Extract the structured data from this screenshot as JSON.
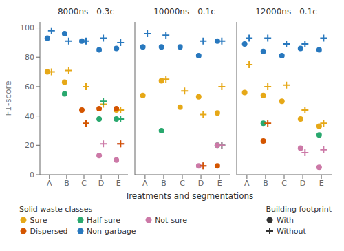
{
  "chart_data": [
    {
      "type": "scatter",
      "title": "8000ns - 0.3c",
      "ylabel": "F1-score",
      "legend_titles": [
        "Solid waste classes",
        "Building footprint"
      ],
      "categories": [
        "A",
        "B",
        "C",
        "D",
        "E"
      ],
      "ylim": [
        0,
        104
      ],
      "yticks": [
        0,
        20,
        40,
        60,
        80,
        100
      ],
      "grid": false,
      "series": [
        {
          "name": "Sure",
          "group": "With",
          "marker": "circle",
          "color": "#E6A817",
          "values": [
            70,
            63,
            null,
            null,
            44
          ]
        },
        {
          "name": "Sure",
          "group": "Without",
          "marker": "plus",
          "color": "#E6A817",
          "values": [
            70,
            71,
            60,
            48,
            44
          ]
        },
        {
          "name": "Half-sure",
          "group": "With",
          "marker": "circle",
          "color": "#29A86E",
          "values": [
            null,
            55,
            null,
            38,
            38
          ]
        },
        {
          "name": "Half-sure",
          "group": "Without",
          "marker": "plus",
          "color": "#29A86E",
          "values": [
            null,
            null,
            null,
            50,
            38
          ]
        },
        {
          "name": "Not-sure",
          "group": "With",
          "marker": "circle",
          "color": "#CC79A7",
          "values": [
            null,
            null,
            null,
            13,
            10
          ]
        },
        {
          "name": "Not-sure",
          "group": "Without",
          "marker": "plus",
          "color": "#CC79A7",
          "values": [
            null,
            null,
            null,
            21,
            21
          ]
        },
        {
          "name": "Dispersed",
          "group": "With",
          "marker": "circle",
          "color": "#D45500",
          "values": [
            null,
            null,
            44,
            45,
            45
          ]
        },
        {
          "name": "Dispersed",
          "group": "Without",
          "marker": "plus",
          "color": "#D45500",
          "values": [
            null,
            null,
            35,
            null,
            21
          ]
        },
        {
          "name": "Non-garbage",
          "group": "With",
          "marker": "circle",
          "color": "#2878BE",
          "values": [
            93,
            96,
            91,
            85,
            86
          ]
        },
        {
          "name": "Non-garbage",
          "group": "Without",
          "marker": "plus",
          "color": "#2878BE",
          "values": [
            98,
            91,
            91,
            93,
            90
          ]
        }
      ]
    },
    {
      "type": "scatter",
      "title": "10000ns - 0.1c",
      "xlabel": "Treatments and segmentations",
      "tick_labels": "x",
      "categories": [
        "A",
        "B",
        "C",
        "D",
        "E"
      ],
      "ylim": [
        0,
        104
      ],
      "yticks": [
        0,
        20,
        40,
        60,
        80,
        100
      ],
      "grid": false,
      "series": [
        {
          "name": "Sure",
          "group": "With",
          "marker": "circle",
          "color": "#E6A817",
          "values": [
            54,
            64,
            46,
            53,
            42
          ]
        },
        {
          "name": "Sure",
          "group": "Without",
          "marker": "plus",
          "color": "#E6A817",
          "values": [
            null,
            65,
            57,
            41,
            60
          ]
        },
        {
          "name": "Half-sure",
          "group": "With",
          "marker": "circle",
          "color": "#29A86E",
          "values": [
            null,
            30,
            null,
            null,
            20
          ]
        },
        {
          "name": "Half-sure",
          "group": "Without",
          "marker": "plus",
          "color": "#29A86E",
          "values": [
            null,
            null,
            null,
            null,
            20
          ]
        },
        {
          "name": "Not-sure",
          "group": "With",
          "marker": "circle",
          "color": "#CC79A7",
          "values": [
            null,
            null,
            null,
            6,
            20
          ]
        },
        {
          "name": "Not-sure",
          "group": "Without",
          "marker": "plus",
          "color": "#CC79A7",
          "values": [
            null,
            null,
            null,
            6,
            20
          ]
        },
        {
          "name": "Dispersed",
          "group": "With",
          "marker": "circle",
          "color": "#D45500",
          "values": [
            null,
            null,
            null,
            null,
            6
          ]
        },
        {
          "name": "Dispersed",
          "group": "Without",
          "marker": "plus",
          "color": "#D45500",
          "values": [
            null,
            null,
            null,
            6,
            null
          ]
        },
        {
          "name": "Non-garbage",
          "group": "With",
          "marker": "circle",
          "color": "#2878BE",
          "values": [
            87,
            87,
            87,
            81,
            91
          ]
        },
        {
          "name": "Non-garbage",
          "group": "Without",
          "marker": "plus",
          "color": "#2878BE",
          "values": [
            96,
            95,
            null,
            91,
            91
          ]
        }
      ]
    },
    {
      "type": "scatter",
      "title": "12000ns - 0.1c",
      "tick_labels": "x",
      "categories": [
        "A",
        "B",
        "C",
        "D",
        "E"
      ],
      "ylim": [
        0,
        104
      ],
      "yticks": [
        0,
        20,
        40,
        60,
        80,
        100
      ],
      "grid": false,
      "series": [
        {
          "name": "Sure",
          "group": "With",
          "marker": "circle",
          "color": "#E6A817",
          "values": [
            56,
            54,
            50,
            38,
            33
          ]
        },
        {
          "name": "Sure",
          "group": "Without",
          "marker": "plus",
          "color": "#E6A817",
          "values": [
            75,
            60,
            61,
            44,
            35
          ]
        },
        {
          "name": "Half-sure",
          "group": "With",
          "marker": "circle",
          "color": "#29A86E",
          "values": [
            null,
            35,
            null,
            null,
            27
          ]
        },
        {
          "name": "Half-sure",
          "group": "Without",
          "marker": "plus",
          "color": "#29A86E",
          "values": [
            null,
            null,
            null,
            null,
            null
          ]
        },
        {
          "name": "Not-sure",
          "group": "With",
          "marker": "circle",
          "color": "#CC79A7",
          "values": [
            null,
            null,
            null,
            18,
            5
          ]
        },
        {
          "name": "Not-sure",
          "group": "Without",
          "marker": "plus",
          "color": "#CC79A7",
          "values": [
            null,
            null,
            null,
            15,
            17
          ]
        },
        {
          "name": "Dispersed",
          "group": "With",
          "marker": "circle",
          "color": "#D45500",
          "values": [
            null,
            23,
            null,
            null,
            null
          ]
        },
        {
          "name": "Dispersed",
          "group": "Without",
          "marker": "plus",
          "color": "#D45500",
          "values": [
            null,
            35,
            null,
            null,
            null
          ]
        },
        {
          "name": "Non-garbage",
          "group": "With",
          "marker": "circle",
          "color": "#2878BE",
          "values": [
            89,
            84,
            81,
            86,
            85
          ]
        },
        {
          "name": "Non-garbage",
          "group": "Without",
          "marker": "plus",
          "color": "#2878BE",
          "values": [
            93,
            93,
            89,
            89,
            93
          ]
        }
      ]
    }
  ]
}
